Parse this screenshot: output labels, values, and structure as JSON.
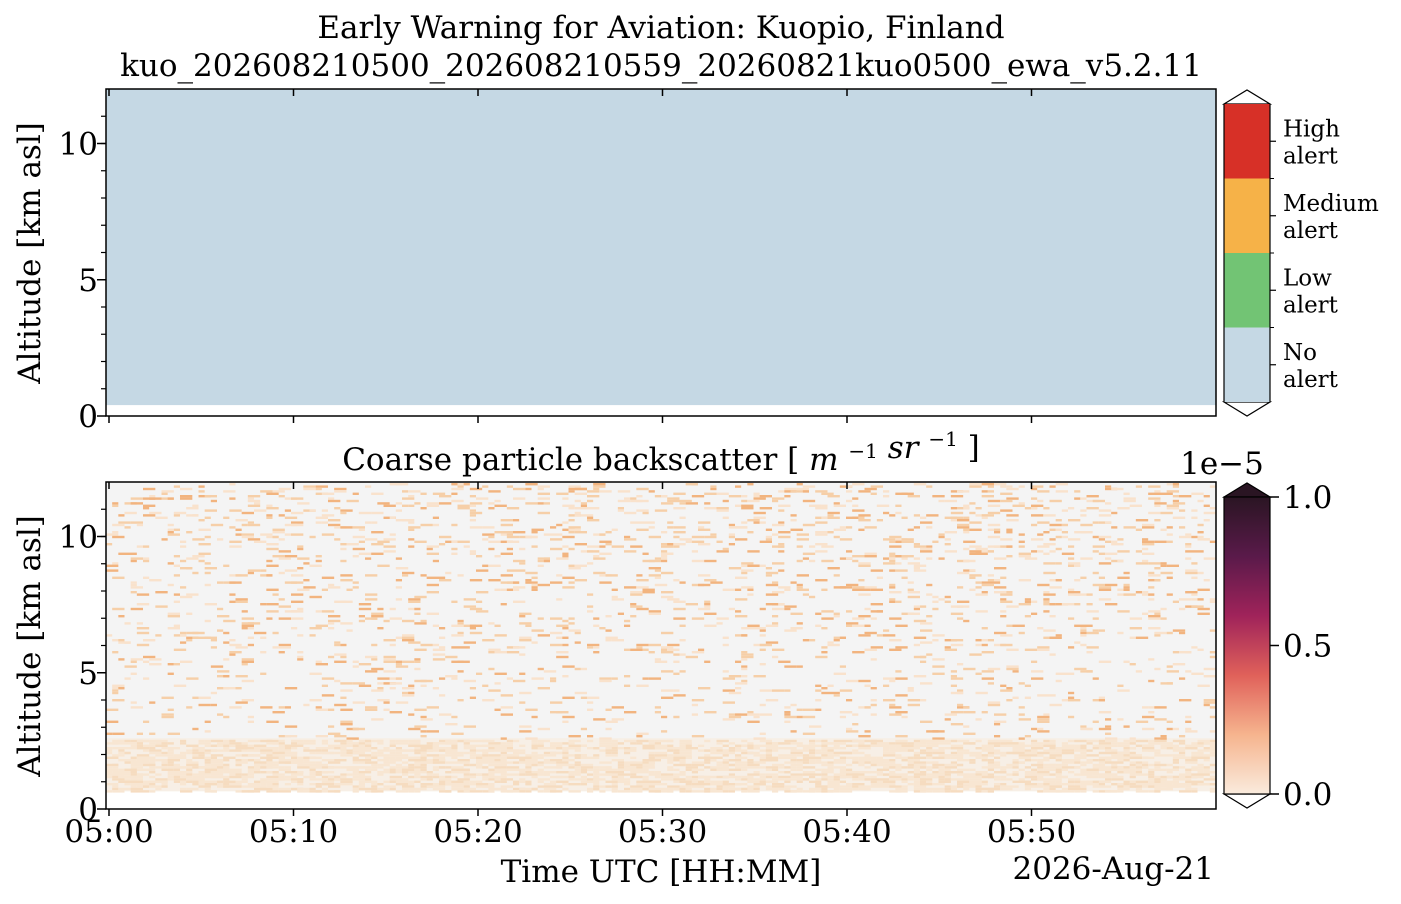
{
  "title_line1": "Early Warning for Aviation: Kuopio, Finland",
  "title_line2": "kuo_202608210500_202608210559_20260821kuo0500_ewa_v5.2.11",
  "colors": {
    "no_alert": "#c5d8e4",
    "low_alert": "#72c474",
    "medium_alert": "#f6b248",
    "high_alert": "#d73027",
    "background_panel": "#f4f4f4"
  },
  "chart_data": [
    {
      "type": "heatmap",
      "title": "",
      "ylabel": "Altitude [km asl]",
      "xlabel": "",
      "xlim": [
        "05:00",
        "05:59"
      ],
      "ylim": [
        0,
        12
      ],
      "yticks": [
        "0",
        "5",
        "10"
      ],
      "xticks": [
        "05:00",
        "05:10",
        "05:20",
        "05:30",
        "05:40",
        "05:50"
      ],
      "data_floor_km": 0.4,
      "dominant_class": "No alert",
      "colorbar": {
        "type": "categorical",
        "categories": [
          {
            "line1": "High",
            "line2": "alert",
            "color": "#d73027"
          },
          {
            "line1": "Medium",
            "line2": "alert",
            "color": "#f6b248"
          },
          {
            "line1": "Low",
            "line2": "alert",
            "color": "#72c474"
          },
          {
            "line1": "No",
            "line2": "alert",
            "color": "#c5d8e4"
          }
        ]
      }
    },
    {
      "type": "heatmap",
      "title": "Coarse particle backscatter",
      "title_units": {
        "m": "m",
        "m_exp": "−1",
        "sr": "sr",
        "sr_exp": "−1"
      },
      "ylabel": "Altitude [km asl]",
      "xlabel": "Time UTC [HH:MM]",
      "date_label": "2026-Aug-21",
      "xlim": [
        "05:00",
        "05:59"
      ],
      "ylim": [
        0,
        12
      ],
      "yticks": [
        "0",
        "5",
        "10"
      ],
      "xticks": [
        "05:00",
        "05:10",
        "05:20",
        "05:30",
        "05:40",
        "05:50"
      ],
      "data_floor_km": 0.65,
      "boundary_layer_top_km": 2.6,
      "colorbar": {
        "type": "continuous",
        "range": [
          0.0,
          1.0
        ],
        "multiplier": "1e−5",
        "ticks": [
          "0.0",
          "0.5",
          "1.0"
        ],
        "colormap": [
          "#faebdd",
          "#f6b48e",
          "#e0615a",
          "#a0235a",
          "#5a1a4a",
          "#2a1523"
        ]
      }
    }
  ]
}
